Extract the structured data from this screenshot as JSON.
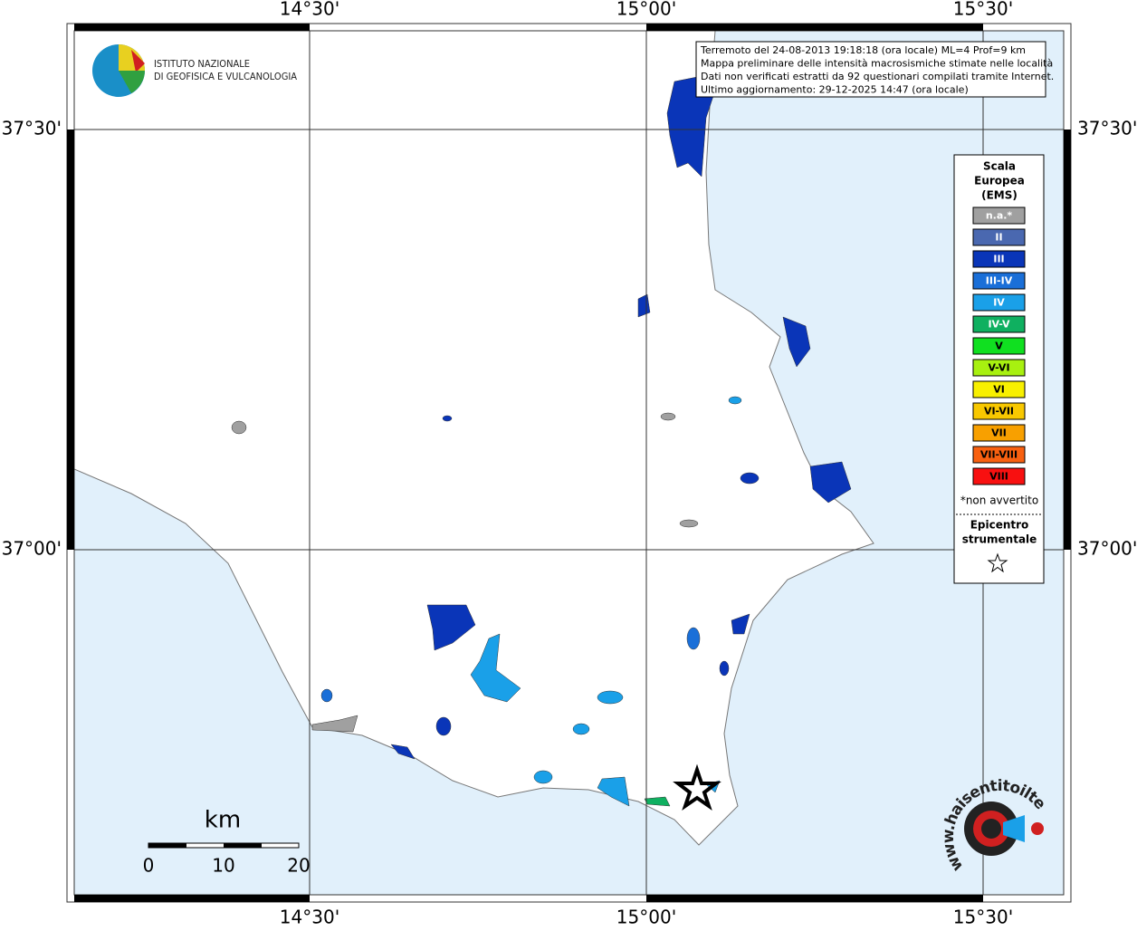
{
  "map": {
    "longitude_labels": [
      "14°30'",
      "15°00'",
      "15°30'"
    ],
    "latitude_labels": [
      "37°30'",
      "37°00'"
    ],
    "institute": {
      "line1": "ISTITUTO NAZIONALE",
      "line2": "DI GEOFISICA E VULCANOLOGIA"
    },
    "info": [
      "Terremoto del 24-08-2013 19:18:18 (ora locale) ML=4 Prof=9 km",
      "Mappa preliminare delle intensità macrosismiche stimate nelle località",
      "Dati non verificati estratti da 92 questionari compilati tramite Internet.",
      "Ultimo aggiornamento: 29-12-2025 14:47 (ora locale)"
    ],
    "legend": {
      "title": [
        "Scala",
        "Europea",
        "(EMS)"
      ],
      "items": [
        {
          "label": "n.a.*",
          "color": "#a0a0a0"
        },
        {
          "label": "II",
          "color": "#4a68b0"
        },
        {
          "label": "III",
          "color": "#0a35b8"
        },
        {
          "label": "III-IV",
          "color": "#1a6fd8"
        },
        {
          "label": "IV",
          "color": "#1aa0e8"
        },
        {
          "label": "IV-V",
          "color": "#0fb060"
        },
        {
          "label": "V",
          "color": "#10e020"
        },
        {
          "label": "V-VI",
          "color": "#a8f010"
        },
        {
          "label": "VI",
          "color": "#f8f000"
        },
        {
          "label": "VI-VII",
          "color": "#f8c800"
        },
        {
          "label": "VII",
          "color": "#f8a000"
        },
        {
          "label": "VII-VIII",
          "color": "#f86010"
        },
        {
          "label": "VIII",
          "color": "#f81010"
        }
      ],
      "note": "*non avvertito",
      "epicenter": [
        "Epicentro",
        "strumentale"
      ]
    },
    "scale_bar": {
      "unit": "km",
      "labels": [
        "0",
        "10",
        "20"
      ]
    },
    "site": "www.haisentitoilterremoto.it"
  }
}
